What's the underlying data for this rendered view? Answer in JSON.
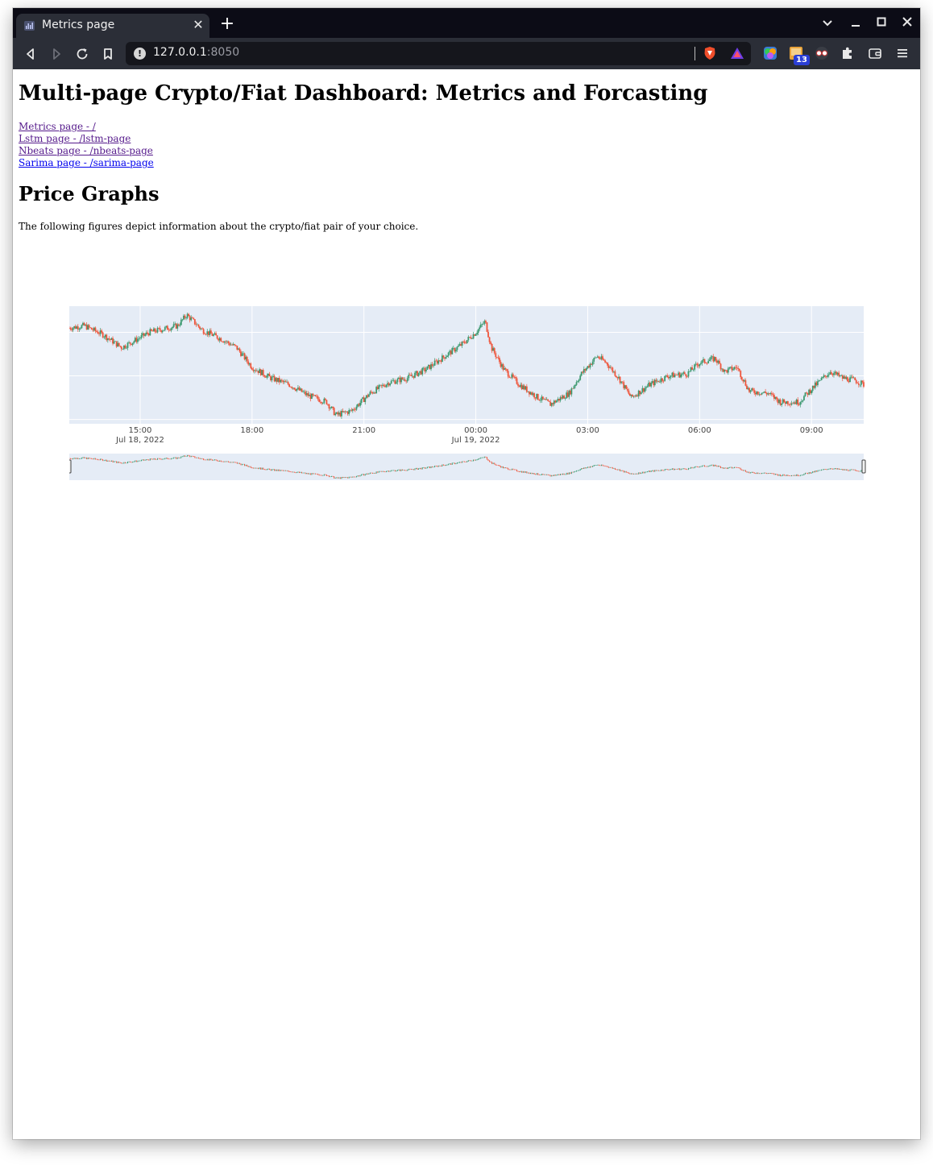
{
  "browser": {
    "tab_title": "Metrics page",
    "url_host": "127.0.0.1",
    "url_port": ":8050",
    "extension_badge": "13"
  },
  "page": {
    "title": "Multi-page Crypto/Fiat Dashboard: Metrics and Forcasting",
    "links": [
      "Metrics page - /",
      "Lstm page - /lstm-page",
      "Nbeats page - /nbeats-page",
      "Sarima page - /sarima-page"
    ],
    "section_title": "Price Graphs",
    "description": "The following figures depict information about the crypto/fiat pair of your choice."
  },
  "chart_data": {
    "type": "candlestick",
    "rangeslider": true,
    "ylim": [
      5.58,
      6.12
    ],
    "yticks": [
      "5.6",
      "5.8",
      "6"
    ],
    "xticks": [
      "15:00",
      "18:00",
      "21:00",
      "00:00",
      "03:00",
      "06:00",
      "09:00"
    ],
    "xticks_dates": [
      "Jul 18, 2022",
      "Jul 19, 2022"
    ],
    "increasing_color": "#3d9970",
    "decreasing_color": "#ef553b",
    "x_start": "Jul 18, 2022 13:06",
    "x_end": "Jul 19, 2022 10:24",
    "close_path": [
      [
        "13:06",
        6.02
      ],
      [
        "13:30",
        6.03
      ],
      [
        "14:00",
        5.99
      ],
      [
        "14:30",
        5.93
      ],
      [
        "14:50",
        5.96
      ],
      [
        "15:15",
        6.0
      ],
      [
        "15:45",
        6.02
      ],
      [
        "16:00",
        6.03
      ],
      [
        "16:15",
        6.08
      ],
      [
        "16:40",
        6.01
      ],
      [
        "17:10",
        5.97
      ],
      [
        "17:35",
        5.93
      ],
      [
        "18:00",
        5.84
      ],
      [
        "18:30",
        5.79
      ],
      [
        "19:00",
        5.76
      ],
      [
        "19:30",
        5.71
      ],
      [
        "20:00",
        5.68
      ],
      [
        "20:15",
        5.62
      ],
      [
        "20:40",
        5.64
      ],
      [
        "21:10",
        5.72
      ],
      [
        "21:40",
        5.77
      ],
      [
        "22:10",
        5.79
      ],
      [
        "22:40",
        5.83
      ],
      [
        "23:10",
        5.89
      ],
      [
        "23:40",
        5.95
      ],
      [
        "00:00",
        6.0
      ],
      [
        "00:15",
        6.05
      ],
      [
        "00:25",
        5.93
      ],
      [
        "00:45",
        5.83
      ],
      [
        "01:10",
        5.76
      ],
      [
        "01:40",
        5.7
      ],
      [
        "02:00",
        5.67
      ],
      [
        "02:30",
        5.72
      ],
      [
        "02:50",
        5.81
      ],
      [
        "03:15",
        5.89
      ],
      [
        "03:30",
        5.86
      ],
      [
        "03:50",
        5.79
      ],
      [
        "04:10",
        5.7
      ],
      [
        "04:40",
        5.76
      ],
      [
        "05:10",
        5.8
      ],
      [
        "05:40",
        5.81
      ],
      [
        "06:00",
        5.86
      ],
      [
        "06:25",
        5.88
      ],
      [
        "06:40",
        5.82
      ],
      [
        "07:00",
        5.84
      ],
      [
        "07:20",
        5.73
      ],
      [
        "07:50",
        5.72
      ],
      [
        "08:10",
        5.68
      ],
      [
        "08:40",
        5.68
      ],
      [
        "09:00",
        5.74
      ],
      [
        "09:30",
        5.82
      ],
      [
        "09:50",
        5.79
      ],
      [
        "10:10",
        5.78
      ],
      [
        "10:24",
        5.76
      ]
    ]
  }
}
